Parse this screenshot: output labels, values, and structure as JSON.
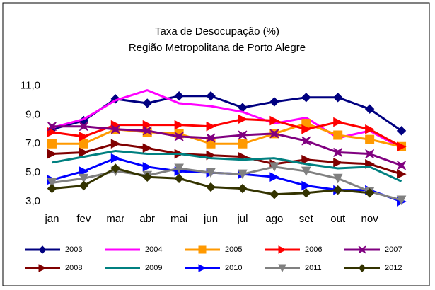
{
  "chart_data": {
    "type": "line",
    "title": "Taxa de Desocupação (%)",
    "subtitle": "Região Metropolitana de Porto Alegre",
    "categories": [
      "jan",
      "fev",
      "mar",
      "abr",
      "mai",
      "jun",
      "jul",
      "ago",
      "set",
      "out",
      "nov",
      null
    ],
    "ylim": [
      3,
      12
    ],
    "yticks": [
      {
        "value": 3,
        "label": "3,0"
      },
      {
        "value": 5,
        "label": "5,0"
      },
      {
        "value": 7,
        "label": "7,0"
      },
      {
        "value": 9,
        "label": "9,0"
      },
      {
        "value": 11,
        "label": "11,0"
      }
    ],
    "grid": false,
    "legend": "bottom",
    "series": [
      {
        "name": "2003",
        "color": "#000080",
        "marker": "diamond",
        "values": [
          8.0,
          8.6,
          10.1,
          9.8,
          10.3,
          10.3,
          9.5,
          9.9,
          10.2,
          10.2,
          9.4,
          7.9
        ]
      },
      {
        "name": "2004",
        "color": "#ff00ff",
        "marker": "none",
        "values": [
          8.1,
          8.7,
          10.0,
          10.7,
          9.8,
          9.6,
          9.2,
          8.4,
          8.8,
          7.4,
          7.9,
          6.7
        ]
      },
      {
        "name": "2005",
        "color": "#ff9900",
        "marker": "square",
        "values": [
          7.0,
          7.0,
          8.0,
          7.8,
          7.7,
          7.0,
          7.0,
          7.7,
          8.4,
          7.6,
          7.3,
          6.8
        ]
      },
      {
        "name": "2006",
        "color": "#ff0000",
        "marker": "arrow",
        "values": [
          7.8,
          7.5,
          8.3,
          8.3,
          8.3,
          8.2,
          8.7,
          8.6,
          8.0,
          8.5,
          8.0,
          6.8
        ]
      },
      {
        "name": "2007",
        "color": "#800080",
        "marker": "star",
        "values": [
          8.2,
          8.2,
          8.0,
          7.9,
          7.5,
          7.4,
          7.6,
          7.7,
          7.2,
          6.4,
          6.3,
          5.5
        ]
      },
      {
        "name": "2008",
        "color": "#800000",
        "marker": "arrow",
        "values": [
          6.3,
          6.4,
          7.0,
          6.7,
          6.3,
          6.2,
          6.1,
          5.6,
          5.9,
          5.7,
          5.6,
          4.9
        ]
      },
      {
        "name": "2009",
        "color": "#008080",
        "marker": "none",
        "values": [
          5.7,
          6.1,
          6.5,
          6.3,
          6.3,
          6.0,
          5.9,
          6.0,
          5.6,
          5.3,
          5.4,
          4.4
        ]
      },
      {
        "name": "2010",
        "color": "#0000ff",
        "marker": "arrow",
        "values": [
          4.5,
          5.1,
          6.0,
          5.4,
          5.1,
          5.0,
          4.9,
          4.7,
          4.1,
          3.8,
          3.8,
          3.0
        ]
      },
      {
        "name": "2011",
        "color": "#808080",
        "marker": "down",
        "values": [
          4.3,
          4.6,
          5.1,
          4.8,
          5.3,
          5.0,
          4.9,
          5.4,
          5.1,
          4.6,
          3.7,
          3.1
        ]
      },
      {
        "name": "2012",
        "color": "#333300",
        "marker": "diamond",
        "values": [
          3.9,
          4.1,
          5.3,
          4.7,
          4.6,
          4.0,
          3.9,
          3.5,
          3.6,
          3.8,
          3.6,
          null
        ]
      }
    ]
  }
}
